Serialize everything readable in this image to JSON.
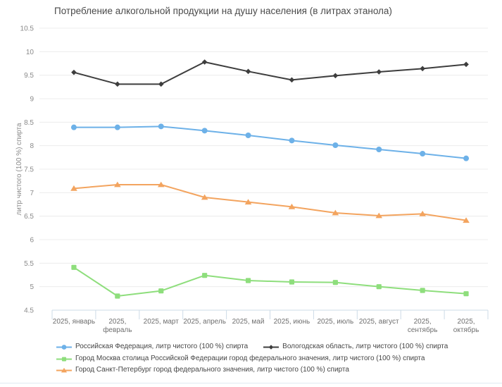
{
  "title": "Потребление алкогольной продукции на душу населения (в литрах этанола)",
  "chart_data": {
    "type": "line",
    "x": [
      "2025, январь",
      "2025, февраль",
      "2025, март",
      "2025, апрель",
      "2025, май",
      "2025, июнь",
      "2025, июль",
      "2025, август",
      "2025, сентябрь",
      "2025, октябрь"
    ],
    "x_tick_lines": [
      [
        "2025, январь"
      ],
      [
        "2025,",
        "февраль"
      ],
      [
        "2025, март"
      ],
      [
        "2025, апрель"
      ],
      [
        "2025, май"
      ],
      [
        "2025, июнь"
      ],
      [
        "2025, июль"
      ],
      [
        "2025, август"
      ],
      [
        "2025,",
        "сентябрь"
      ],
      [
        "2025,",
        "октябрь"
      ]
    ],
    "ylabel": "литр чистого (100 %) спирта",
    "ylim": [
      4.5,
      10.5
    ],
    "ytick_step": 0.5,
    "grid": true,
    "legend_position": "bottom",
    "series": [
      {
        "name": "Российская Федерация, литр чистого (100 %) спирта",
        "marker": "circle",
        "color": "#6db1e8",
        "values": [
          8.39,
          8.39,
          8.41,
          8.32,
          8.22,
          8.11,
          8.01,
          7.92,
          7.83,
          7.73
        ]
      },
      {
        "name": "Вологодская область, литр чистого (100 %) спирта",
        "marker": "diamond",
        "color": "#3d3d3d",
        "values": [
          9.56,
          9.31,
          9.31,
          9.78,
          9.58,
          9.4,
          9.49,
          9.57,
          9.64,
          9.73
        ]
      },
      {
        "name": "Город Москва столица Российской Федерации город федерального значения, литр чистого (100 %) спирта",
        "marker": "square",
        "color": "#8ede7c",
        "values": [
          5.41,
          4.8,
          4.91,
          5.24,
          5.13,
          5.1,
          5.09,
          5.0,
          4.92,
          4.85
        ]
      },
      {
        "name": "Город Санкт-Петербург город федерального значения, литр чистого (100 %) спирта",
        "marker": "triangle",
        "color": "#f3a45f",
        "values": [
          7.09,
          7.17,
          7.17,
          6.9,
          6.8,
          6.7,
          6.57,
          6.51,
          6.55,
          6.41
        ]
      }
    ],
    "colors": {
      "grid": "#ececec",
      "axis_border": "#cddbe7",
      "tick_text": "#8a8a8a",
      "xtick_text": "#6f6f6f",
      "legend_text": "#454545",
      "title_text": "#4a4a4a",
      "bottom_rule": "#dfe9f1"
    }
  }
}
